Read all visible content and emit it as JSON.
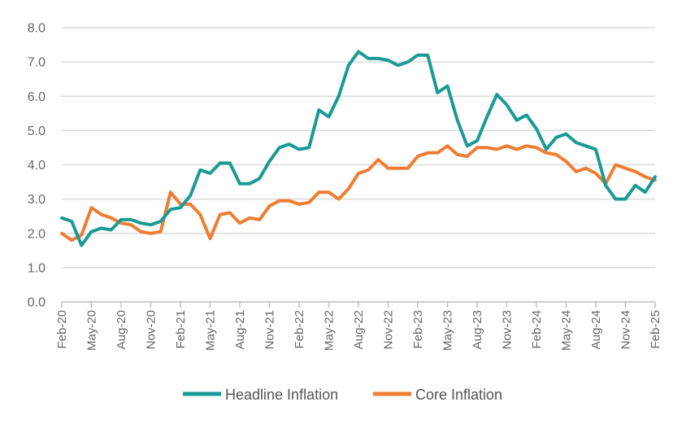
{
  "chart_data": {
    "type": "line",
    "title": "",
    "xlabel": "",
    "ylabel": "",
    "ylim": [
      0,
      8
    ],
    "yticks": [
      "0.0",
      "1.0",
      "2.0",
      "3.0",
      "4.0",
      "5.0",
      "6.0",
      "7.0",
      "8.0"
    ],
    "xtick_labels": [
      "Feb-20",
      "May-20",
      "Aug-20",
      "Nov-20",
      "Feb-21",
      "May-21",
      "Aug-21",
      "Nov-21",
      "Feb-22",
      "May-22",
      "Aug-22",
      "Nov-22",
      "Feb-23",
      "May-23",
      "Aug-23",
      "Nov-23",
      "Feb-24",
      "May-24",
      "Aug-24",
      "Nov-24",
      "Feb-25"
    ],
    "grid": "horizontal",
    "legend_position": "bottom",
    "x": [
      "Feb-20",
      "Mar-20",
      "Apr-20",
      "May-20",
      "Jun-20",
      "Jul-20",
      "Aug-20",
      "Sep-20",
      "Oct-20",
      "Nov-20",
      "Dec-20",
      "Jan-21",
      "Feb-21",
      "Mar-21",
      "Apr-21",
      "May-21",
      "Jun-21",
      "Jul-21",
      "Aug-21",
      "Sep-21",
      "Oct-21",
      "Nov-21",
      "Dec-21",
      "Jan-22",
      "Feb-22",
      "Mar-22",
      "Apr-22",
      "May-22",
      "Jun-22",
      "Jul-22",
      "Aug-22",
      "Sep-22",
      "Oct-22",
      "Nov-22",
      "Dec-22",
      "Jan-23",
      "Feb-23",
      "Mar-23",
      "Apr-23",
      "May-23",
      "Jun-23",
      "Jul-23",
      "Aug-23",
      "Sep-23",
      "Oct-23",
      "Nov-23",
      "Dec-23",
      "Jan-24",
      "Feb-24",
      "Mar-24",
      "Apr-24",
      "May-24",
      "Jun-24",
      "Jul-24",
      "Aug-24",
      "Sep-24",
      "Oct-24",
      "Nov-24",
      "Dec-24",
      "Jan-25",
      "Feb-25"
    ],
    "series": [
      {
        "name": "Headline Inflation",
        "color": "#1a9a94",
        "values": [
          2.45,
          2.35,
          1.65,
          2.05,
          2.15,
          2.1,
          2.4,
          2.4,
          2.3,
          2.25,
          2.35,
          2.7,
          2.75,
          3.1,
          3.85,
          3.75,
          4.05,
          4.05,
          3.45,
          3.45,
          3.6,
          4.1,
          4.5,
          4.6,
          4.45,
          4.5,
          5.6,
          5.4,
          6.0,
          6.9,
          7.3,
          7.1,
          7.1,
          7.05,
          6.9,
          7.0,
          7.2,
          7.2,
          6.1,
          6.3,
          5.3,
          4.55,
          4.7,
          5.4,
          6.05,
          5.75,
          5.3,
          5.45,
          5.05,
          4.45,
          4.8,
          4.9,
          4.65,
          4.55,
          4.45,
          3.4,
          3.0,
          3.0,
          3.4,
          3.2,
          3.65
        ]
      },
      {
        "name": "Core Inflation",
        "color": "#ee7d31",
        "values": [
          2.0,
          1.8,
          1.95,
          2.75,
          2.55,
          2.45,
          2.3,
          2.25,
          2.05,
          2.0,
          2.05,
          3.2,
          2.85,
          2.85,
          2.55,
          1.85,
          2.55,
          2.6,
          2.3,
          2.45,
          2.4,
          2.8,
          2.95,
          2.95,
          2.85,
          2.9,
          3.2,
          3.2,
          3.0,
          3.3,
          3.75,
          3.85,
          4.15,
          3.9,
          3.9,
          3.9,
          4.25,
          4.35,
          4.35,
          4.55,
          4.3,
          4.25,
          4.5,
          4.5,
          4.45,
          4.55,
          4.45,
          4.55,
          4.5,
          4.35,
          4.3,
          4.1,
          3.8,
          3.9,
          3.75,
          3.45,
          4.0,
          3.9,
          3.8,
          3.65,
          3.55
        ]
      }
    ]
  }
}
